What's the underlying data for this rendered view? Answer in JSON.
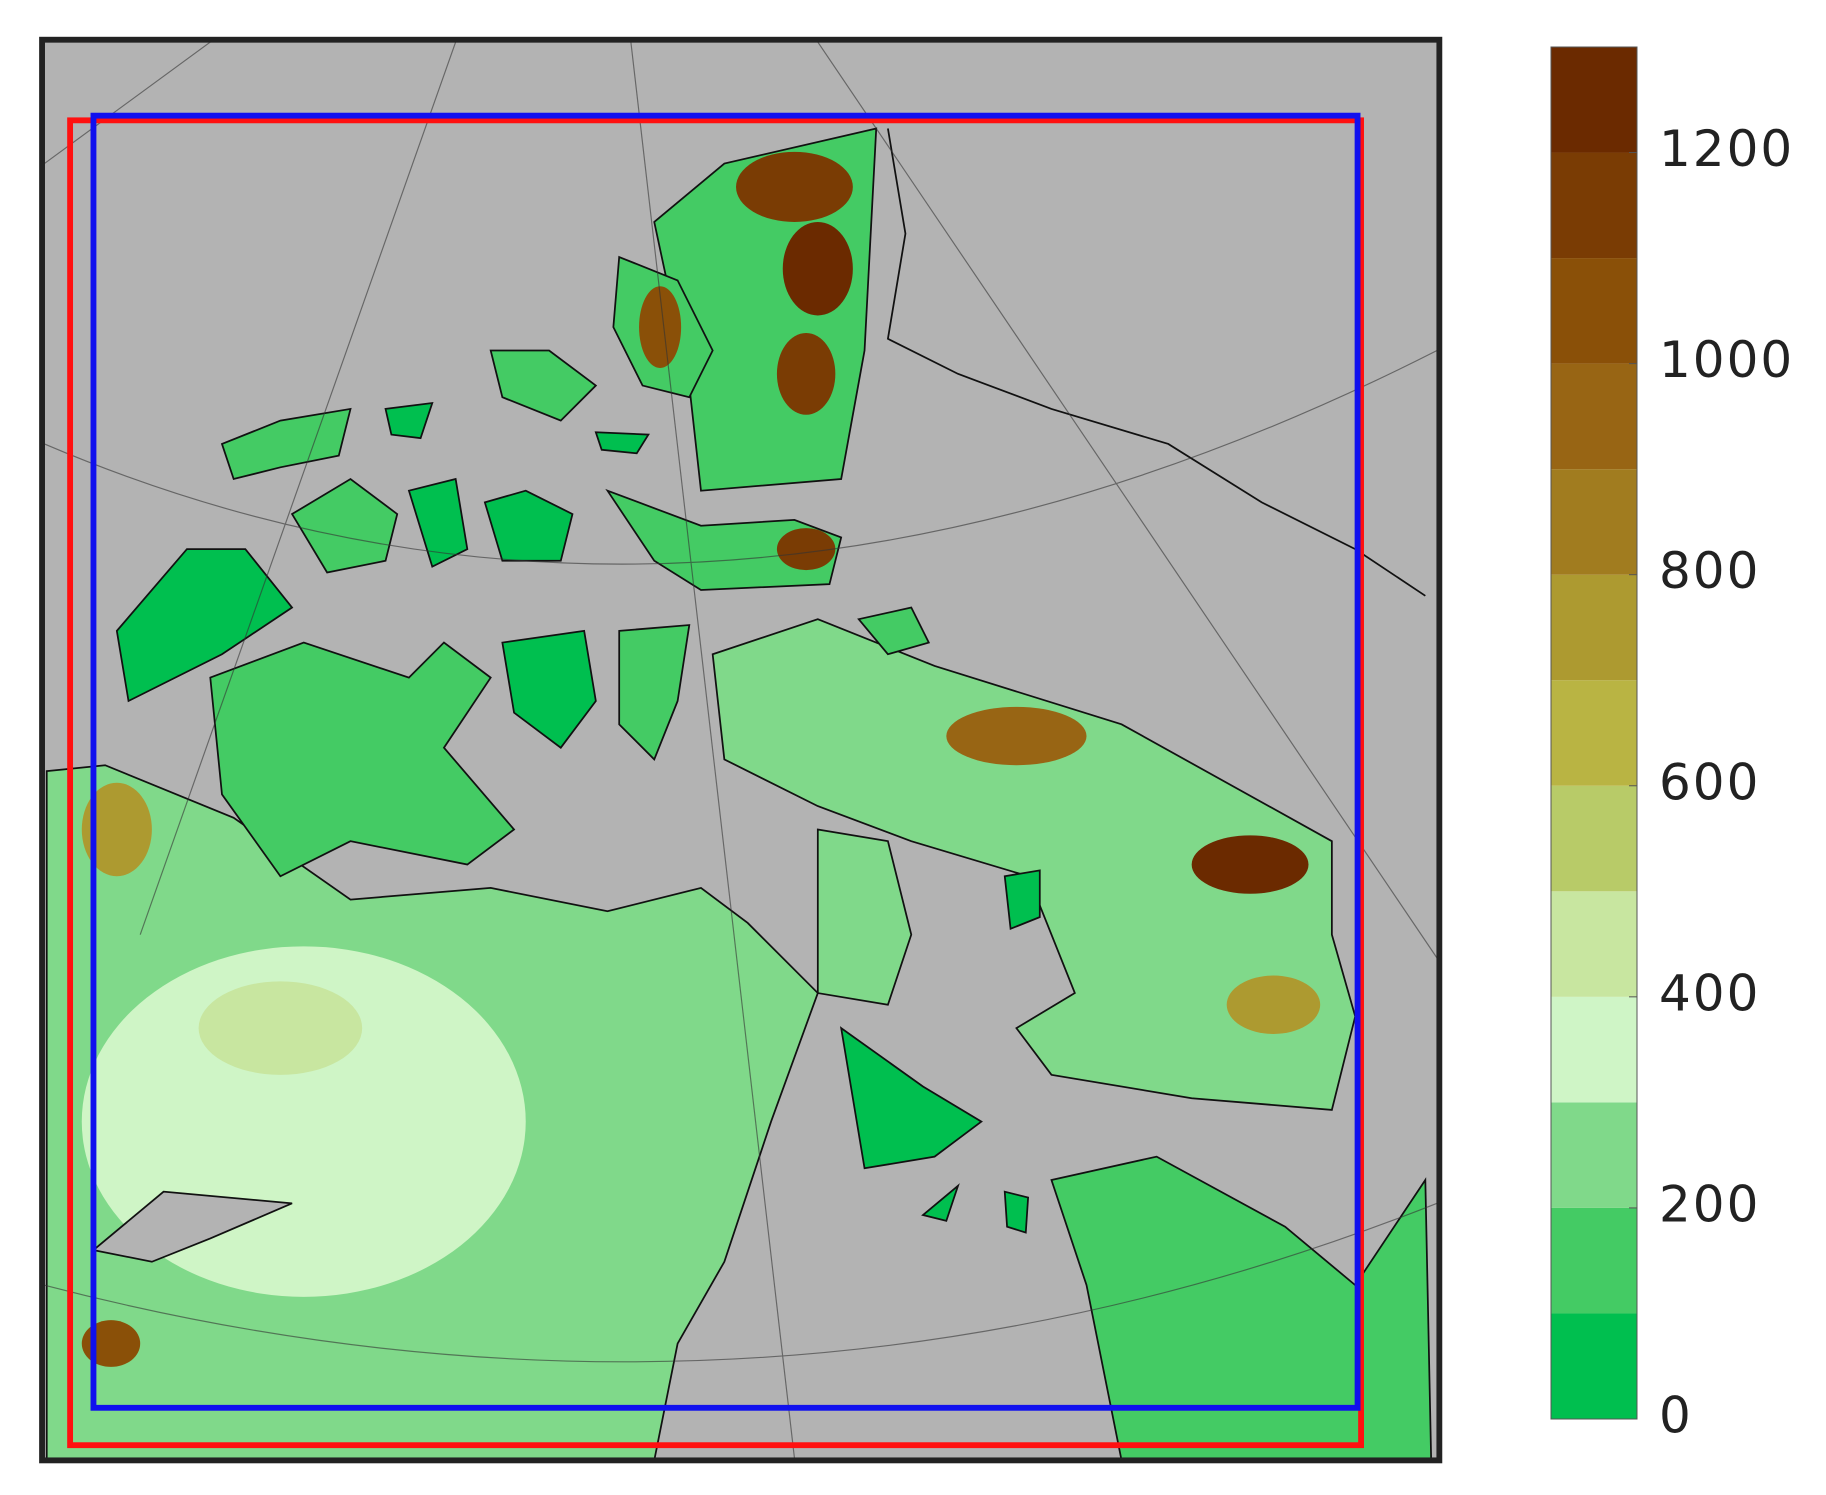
{
  "chart_data": {
    "type": "colorbar",
    "levels": [
      0,
      100,
      200,
      300,
      400,
      500,
      600,
      700,
      800,
      900,
      1000,
      1100,
      1200,
      1300
    ],
    "colors": [
      "#00bf4f",
      "#44cb64",
      "#80d98a",
      "#cff5c6",
      "#c8e6a0",
      "#b8cb68",
      "#b9b443",
      "#ad9a30",
      "#a17c1f",
      "#986514",
      "#8a5008",
      "#7a3c04",
      "#6b2a00"
    ],
    "ylim": [
      0,
      1300
    ],
    "yticks": [
      0,
      200,
      400,
      600,
      800,
      1000,
      1200
    ]
  }
}
